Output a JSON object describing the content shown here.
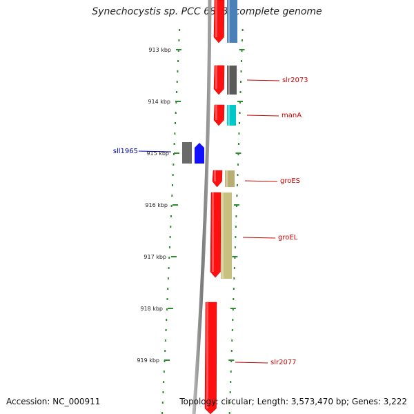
{
  "title": "Synechocystis sp. PCC 6803, complete genome",
  "footer": {
    "accession": "Accession: NC_000911",
    "summary": "Topology: circular; Length: 3,573,470 bp; Genes: 3,222"
  },
  "colors": {
    "backbone": "#8a8a8a",
    "tick": "#2e8b2e",
    "forward_gene": "#ff1010",
    "gene_label_forward": "#cc0000",
    "gene_label_reverse": "#0000aa"
  },
  "ticks": [
    {
      "kbp": 913,
      "label": "913 kbp"
    },
    {
      "kbp": 914,
      "label": "914 kbp"
    },
    {
      "kbp": 915,
      "label": "915 kbp"
    },
    {
      "kbp": 916,
      "label": "916 kbp"
    },
    {
      "kbp": 917,
      "label": "917 kbp"
    },
    {
      "kbp": 918,
      "label": "918 kbp"
    },
    {
      "kbp": 919,
      "label": "919 kbp"
    }
  ],
  "genes": [
    {
      "name": "slr2073",
      "strand": "+",
      "category_color": "#5a5a5a"
    },
    {
      "name": "manA",
      "strand": "+",
      "category_color": "#00c8c8"
    },
    {
      "name": "sll1965",
      "strand": "-",
      "category_color": "#1010ff"
    },
    {
      "name": "groES",
      "strand": "+",
      "category_color": "#b8ae72"
    },
    {
      "name": "groEL",
      "strand": "+",
      "category_color": "#c8c07e"
    },
    {
      "name": "slr2077",
      "strand": "+",
      "category_color": ""
    }
  ]
}
